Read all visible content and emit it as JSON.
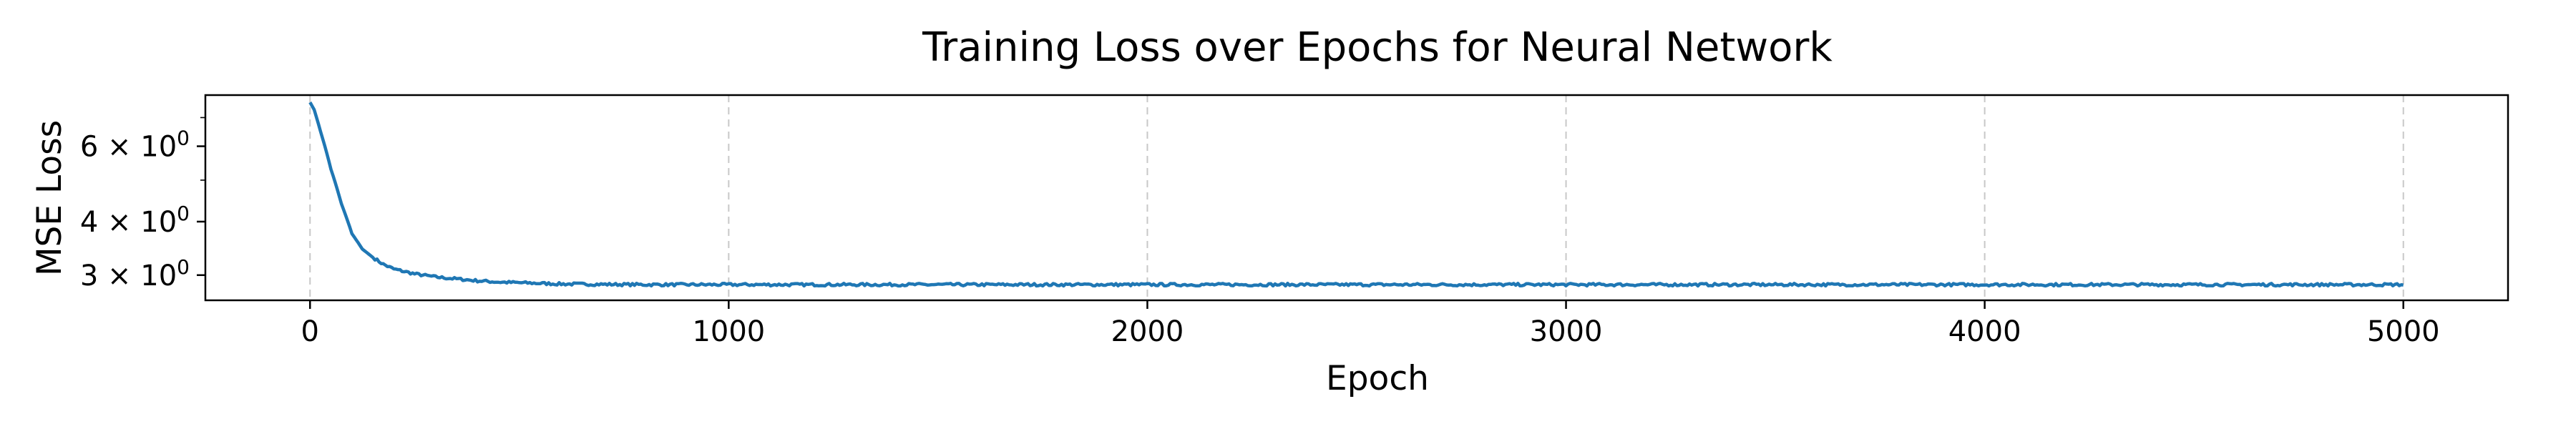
{
  "chart_data": {
    "type": "line",
    "title": "Training Loss over Epochs for Neural Network",
    "xlabel": "Epoch",
    "ylabel": "MSE Loss",
    "xlim": [
      -250,
      5250
    ],
    "ylim": [
      2.62,
      7.9
    ],
    "yscale": "log",
    "grid": "x-dashed",
    "legend": "none",
    "xticks": [
      {
        "value": 0,
        "label": "0"
      },
      {
        "value": 1000,
        "label": "1000"
      },
      {
        "value": 2000,
        "label": "2000"
      },
      {
        "value": 3000,
        "label": "3000"
      },
      {
        "value": 4000,
        "label": "4000"
      },
      {
        "value": 5000,
        "label": "5000"
      }
    ],
    "yticks": [
      {
        "value": 3,
        "base": "3",
        "exp": "0"
      },
      {
        "value": 4,
        "base": "4",
        "exp": "0"
      },
      {
        "value": 6,
        "base": "6",
        "exp": "0"
      }
    ],
    "yminor": [
      5,
      7
    ],
    "series": [
      {
        "color": "#1f77b4",
        "x": [
          0,
          10,
          25,
          50,
          75,
          100,
          125,
          150,
          175,
          200,
          250,
          300,
          350,
          400,
          450,
          500,
          550,
          600,
          700,
          800,
          900,
          1000,
          1200,
          1400,
          1600,
          1800,
          2000,
          2200,
          2400,
          2600,
          2800,
          3000,
          3200,
          3400,
          3600,
          3800,
          4000,
          4200,
          4400,
          4600,
          4800,
          5000
        ],
        "y": [
          7.6,
          7.3,
          6.5,
          5.3,
          4.4,
          3.75,
          3.45,
          3.3,
          3.18,
          3.1,
          3.02,
          2.97,
          2.94,
          2.91,
          2.89,
          2.88,
          2.87,
          2.86,
          2.855,
          2.85,
          2.85,
          2.85,
          2.85,
          2.85,
          2.85,
          2.85,
          2.85,
          2.85,
          2.85,
          2.85,
          2.85,
          2.85,
          2.85,
          2.85,
          2.85,
          2.85,
          2.85,
          2.85,
          2.85,
          2.85,
          2.85,
          2.85
        ]
      }
    ]
  }
}
